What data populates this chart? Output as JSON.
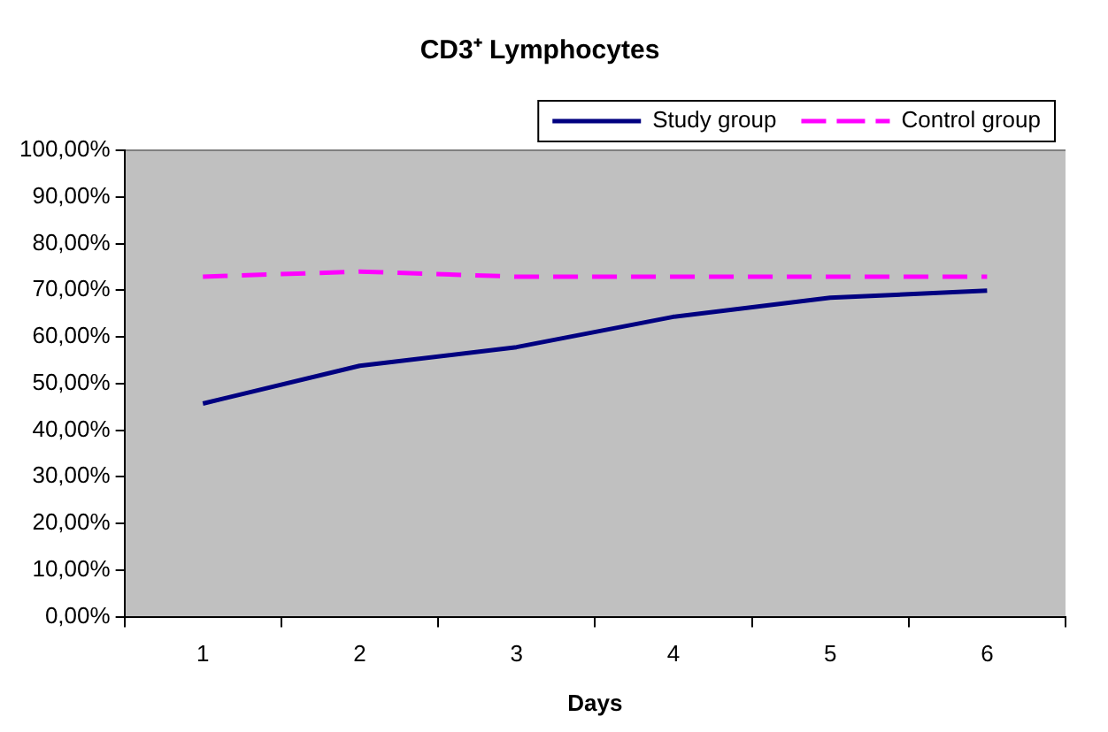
{
  "chart_data": {
    "type": "line",
    "title": "CD3⁺ Lymphocytes",
    "xlabel": "Days",
    "categories": [
      "1",
      "2",
      "3",
      "4",
      "5",
      "6"
    ],
    "series": [
      {
        "name": "Study group",
        "color": "#000080",
        "values": [
          45.7,
          53.8,
          57.8,
          64.3,
          68.4,
          69.9
        ],
        "line_style": "solid"
      },
      {
        "name": "Control group",
        "color": "#ff00ff",
        "values": [
          72.9,
          74.0,
          72.9,
          72.9,
          72.9,
          72.9
        ],
        "line_style": "dashed"
      }
    ],
    "ylim": [
      0,
      100
    ],
    "yticks": [
      {
        "value": 0,
        "label": "0,00%"
      },
      {
        "value": 10,
        "label": "10,00%"
      },
      {
        "value": 20,
        "label": "20,00%"
      },
      {
        "value": 30,
        "label": "30,00%"
      },
      {
        "value": 40,
        "label": "40,00%"
      },
      {
        "value": 50,
        "label": "50,00%"
      },
      {
        "value": 60,
        "label": "60,00%"
      },
      {
        "value": 70,
        "label": "70,00%"
      },
      {
        "value": 80,
        "label": "80,00%"
      },
      {
        "value": 90,
        "label": "90,00%"
      },
      {
        "value": 100,
        "label": "100,00%"
      }
    ],
    "grid": false,
    "legend": "top",
    "marker": "none"
  }
}
